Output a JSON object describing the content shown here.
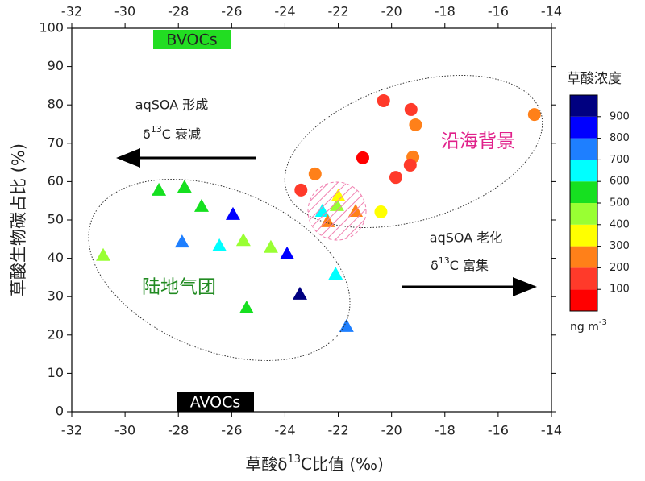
{
  "chart_data": {
    "type": "scatter",
    "xlabel": [
      "草酸δ",
      "13",
      "C比值 (‰)"
    ],
    "ylabel": "草酸生物碳占比 (%)",
    "xlim": [
      -32,
      -14
    ],
    "ylim": [
      0,
      100
    ],
    "xticks": [
      -32,
      -30,
      -28,
      -26,
      -24,
      -22,
      -20,
      -18,
      -16,
      -14
    ],
    "yticks": [
      0,
      10,
      20,
      30,
      40,
      50,
      60,
      70,
      80,
      90,
      100
    ],
    "series": [
      {
        "marker": "circle",
        "x": [
          -20.3,
          -19.27,
          -19.1,
          -14.64,
          -19.2,
          -21.08,
          -19.3,
          -19.84,
          -22.87,
          -23.4,
          -20.4
        ],
        "values": [
          81.1,
          78.8,
          74.8,
          77.5,
          66.4,
          66.2,
          64.3,
          61.1,
          62,
          57.8,
          52.1
        ],
        "colors": [
          "#ff3a2a",
          "#ff3a2a",
          "#ff8019",
          "#ff8019",
          "#ff8019",
          "#ff0000",
          "#ff3a2a",
          "#ff3a2a",
          "#ff8019",
          "#ff3a2a",
          "#ffff00"
        ]
      },
      {
        "marker": "triangle",
        "x": [
          -28.73,
          -27.77,
          -27.13,
          -25.95,
          -27.86,
          -26.46,
          -25.56,
          -24.53,
          -23.92,
          -30.82,
          -25.44,
          -23.44,
          -22.1,
          -21.69,
          -22.6,
          -22.05,
          -22,
          -21.35,
          -22.4
        ],
        "values": [
          57.8,
          58.6,
          53.6,
          51.5,
          44.3,
          43.3,
          44.7,
          42.9,
          41.2,
          40.8,
          27.1,
          30.7,
          35.9,
          22.3,
          52.3,
          53.8,
          56.3,
          52.3,
          49.6
        ],
        "colors": [
          "#16e020",
          "#16e020",
          "#16e020",
          "#0000ff",
          "#1e7fff",
          "#00ffff",
          "#99ff33",
          "#99ff33",
          "#0000ff",
          "#99ff33",
          "#16e020",
          "#000080",
          "#00ffff",
          "#1e7fff",
          "#00ffff",
          "#99ff33",
          "#ffff00",
          "#ff8019",
          "#ff8019"
        ]
      }
    ],
    "colorbar": {
      "title": "草酸浓度",
      "unit": "ng m",
      "unit_sup": "-3",
      "lim": [
        0,
        1000
      ],
      "ticks": [
        100,
        200,
        300,
        400,
        500,
        600,
        700,
        800,
        900
      ],
      "colors": [
        "#ff0000",
        "#ff3a2a",
        "#ff8019",
        "#ffff00",
        "#99ff33",
        "#16e020",
        "#00ffff",
        "#1e7fff",
        "#0000ff",
        "#000080"
      ]
    },
    "annotations": {
      "bvocs": "BVOCs",
      "avocs": "AVOCs",
      "formation": "aqSOA 形成",
      "decay": [
        "δ",
        "13",
        "C 衰减"
      ],
      "aging": "aqSOA 老化",
      "enrich": [
        "δ",
        "13",
        "C 富集"
      ],
      "coastal": "沿海背景",
      "continental": "陆地气团"
    }
  }
}
